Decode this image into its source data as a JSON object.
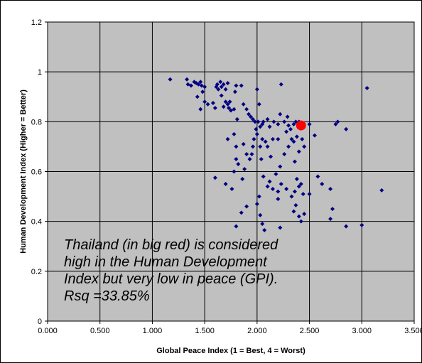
{
  "chart_data": {
    "type": "scatter",
    "title": "",
    "xlabel": "Global Peace Index (1 = Best, 4 = Worst)",
    "ylabel": "Human Development Index (Higher = Better)",
    "xlim": [
      0,
      3.5
    ],
    "ylim": [
      0,
      1.2
    ],
    "x_ticks": [
      "0.000",
      "0.500",
      "1.000",
      "1.500",
      "2.000",
      "2.500",
      "3.000",
      "3.500"
    ],
    "y_ticks": [
      "0",
      "0.2",
      "0.4",
      "0.6",
      "0.8",
      "1",
      "1.2"
    ],
    "grid": true,
    "plot_background": "#c0c0c0",
    "grid_color": "#000000",
    "series": [
      {
        "marker": "diamond",
        "color": "#000080",
        "points": [
          [
            1.17,
            0.97
          ],
          [
            1.33,
            0.97
          ],
          [
            1.34,
            0.95
          ],
          [
            1.37,
            0.945
          ],
          [
            1.4,
            0.96
          ],
          [
            1.42,
            0.955
          ],
          [
            1.44,
            0.95
          ],
          [
            1.46,
            0.96
          ],
          [
            1.47,
            0.945
          ],
          [
            1.5,
            0.94
          ],
          [
            1.43,
            0.9
          ],
          [
            1.48,
            0.92
          ],
          [
            1.5,
            0.88
          ],
          [
            1.53,
            0.87
          ],
          [
            1.46,
            0.85
          ],
          [
            1.58,
            0.875
          ],
          [
            1.6,
            0.855
          ],
          [
            1.61,
            0.94
          ],
          [
            1.62,
            0.95
          ],
          [
            1.63,
            0.93
          ],
          [
            1.65,
            0.96
          ],
          [
            1.66,
            0.94
          ],
          [
            1.68,
            0.95
          ],
          [
            1.7,
            0.93
          ],
          [
            1.72,
            0.955
          ],
          [
            1.66,
            0.905
          ],
          [
            1.7,
            0.88
          ],
          [
            1.72,
            0.87
          ],
          [
            1.68,
            0.86
          ],
          [
            1.74,
            0.88
          ],
          [
            1.73,
            0.855
          ],
          [
            1.75,
            0.845
          ],
          [
            1.78,
            0.85
          ],
          [
            1.8,
            0.945
          ],
          [
            1.85,
            0.945
          ],
          [
            1.79,
            0.92
          ],
          [
            1.81,
            0.81
          ],
          [
            1.87,
            0.87
          ],
          [
            1.9,
            0.85
          ],
          [
            1.92,
            0.83
          ],
          [
            1.94,
            0.82
          ],
          [
            1.96,
            0.81
          ],
          [
            1.98,
            0.8
          ],
          [
            1.99,
            0.77
          ],
          [
            1.97,
            0.73
          ],
          [
            1.96,
            0.7
          ],
          [
            1.95,
            0.67
          ],
          [
            1.93,
            0.65
          ],
          [
            1.9,
            0.67
          ],
          [
            1.6,
            0.575
          ],
          [
            1.7,
            0.55
          ],
          [
            1.72,
            0.73
          ],
          [
            1.78,
            0.75
          ],
          [
            1.8,
            0.7
          ],
          [
            1.82,
            0.63
          ],
          [
            1.87,
            0.71
          ],
          [
            1.88,
            0.61
          ],
          [
            1.86,
            0.57
          ],
          [
            1.8,
            0.65
          ],
          [
            1.76,
            0.53
          ],
          [
            1.78,
            0.6
          ],
          [
            2.0,
            0.93
          ],
          [
            2.02,
            0.87
          ],
          [
            2.01,
            0.8
          ],
          [
            2.03,
            0.78
          ],
          [
            2.05,
            0.79
          ],
          [
            2.06,
            0.8
          ],
          [
            2.1,
            0.81
          ],
          [
            2.12,
            0.78
          ],
          [
            2.16,
            0.8
          ],
          [
            2.2,
            0.79
          ],
          [
            2.22,
            0.83
          ],
          [
            2.23,
            0.95
          ],
          [
            2.26,
            0.8
          ],
          [
            2.29,
            0.82
          ],
          [
            2.3,
            0.785
          ],
          [
            2.32,
            0.77
          ],
          [
            2.35,
            0.79
          ],
          [
            2.37,
            0.8
          ],
          [
            2.4,
            0.8
          ],
          [
            2.28,
            0.76
          ],
          [
            2.2,
            0.73
          ],
          [
            2.15,
            0.73
          ],
          [
            2.05,
            0.73
          ],
          [
            2.08,
            0.72
          ],
          [
            2.0,
            0.75
          ],
          [
            2.03,
            0.7
          ],
          [
            2.1,
            0.7
          ],
          [
            2.13,
            0.66
          ],
          [
            2.04,
            0.65
          ],
          [
            2.06,
            0.58
          ],
          [
            2.12,
            0.56
          ],
          [
            2.18,
            0.59
          ],
          [
            2.22,
            0.62
          ],
          [
            2.26,
            0.67
          ],
          [
            2.3,
            0.7
          ],
          [
            2.33,
            0.73
          ],
          [
            2.35,
            0.72
          ],
          [
            2.38,
            0.74
          ],
          [
            2.43,
            0.73
          ],
          [
            2.45,
            0.7
          ],
          [
            2.4,
            0.68
          ],
          [
            2.36,
            0.64
          ],
          [
            2.1,
            0.54
          ],
          [
            2.15,
            0.53
          ],
          [
            2.2,
            0.52
          ],
          [
            2.23,
            0.55
          ],
          [
            2.28,
            0.53
          ],
          [
            2.33,
            0.5
          ],
          [
            2.36,
            0.52
          ],
          [
            2.38,
            0.57
          ],
          [
            2.4,
            0.54
          ],
          [
            2.42,
            0.55
          ],
          [
            2.44,
            0.51
          ],
          [
            2.5,
            0.51
          ],
          [
            2.55,
            0.745
          ],
          [
            2.58,
            0.58
          ],
          [
            2.62,
            0.55
          ],
          [
            2.7,
            0.53
          ],
          [
            1.8,
            0.38
          ],
          [
            1.85,
            0.435
          ],
          [
            1.9,
            0.46
          ],
          [
            2.0,
            0.47
          ],
          [
            2.02,
            0.5
          ],
          [
            2.03,
            0.425
          ],
          [
            2.05,
            0.39
          ],
          [
            2.07,
            0.365
          ],
          [
            2.2,
            0.49
          ],
          [
            2.22,
            0.375
          ],
          [
            2.35,
            0.44
          ],
          [
            2.37,
            0.465
          ],
          [
            2.4,
            0.42
          ],
          [
            2.42,
            0.4
          ],
          [
            2.45,
            0.43
          ],
          [
            2.7,
            0.41
          ],
          [
            2.72,
            0.45
          ],
          [
            2.85,
            0.38
          ],
          [
            2.5,
            0.79
          ],
          [
            2.75,
            0.79
          ],
          [
            2.77,
            0.8
          ],
          [
            2.85,
            0.77
          ],
          [
            3.0,
            0.385
          ],
          [
            3.05,
            0.935
          ],
          [
            3.19,
            0.525
          ]
        ]
      },
      {
        "name": "Thailand",
        "marker": "circle",
        "color": "#ff0000",
        "points": [
          [
            2.42,
            0.785
          ]
        ]
      }
    ],
    "annotation": {
      "lines": [
        "Thailand (in big red) is considered",
        "high in the Human Development",
        "Index but very low in peace (GPI).",
        "Rsq =33.85%"
      ]
    }
  }
}
